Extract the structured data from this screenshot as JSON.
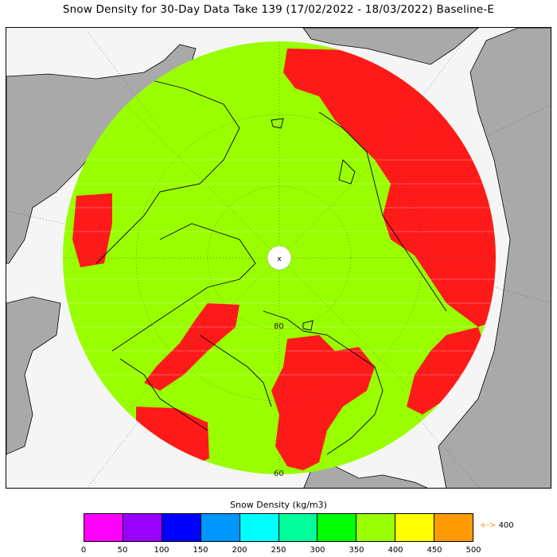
{
  "title": "Snow Density for 30-Day Data Take 139 (17/02/2022 - 18/03/2022) Baseline-E",
  "map": {
    "projection": "north-polar-stereographic",
    "latitude_labels": [
      "80",
      "60"
    ],
    "pole_marker": "x",
    "colors": {
      "land": "#a9a9a9",
      "ocean": "#f5f5f5",
      "main_fill": "#99ff00",
      "high_density": "#ff1a1a",
      "outline": "#000000"
    }
  },
  "colorbar": {
    "label": "Snow Density (kg/m3)",
    "ticks": [
      "0",
      "50",
      "100",
      "150",
      "200",
      "250",
      "300",
      "350",
      "400",
      "450",
      "500"
    ],
    "colors": [
      "#ff00ff",
      "#9900ff",
      "#0000ff",
      "#0096ff",
      "#00ffff",
      "#00ff9c",
      "#00ff00",
      "#99ff00",
      "#ffff00",
      "#ff9b00"
    ],
    "overflow_label": "400",
    "overflow_arrow": "+->"
  }
}
